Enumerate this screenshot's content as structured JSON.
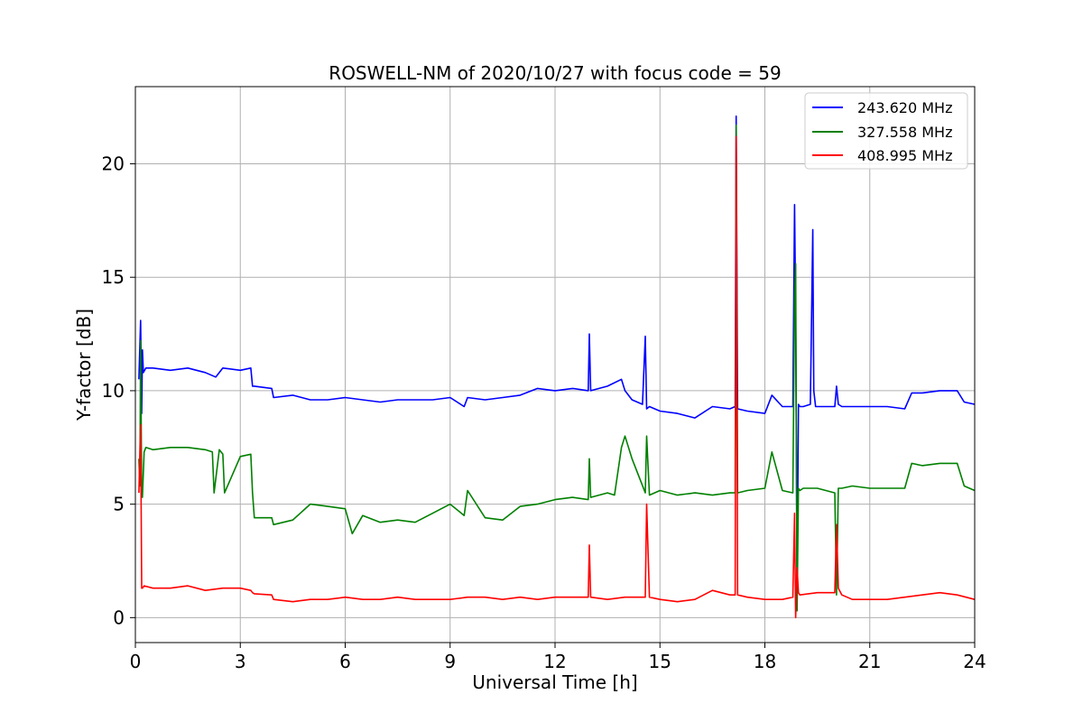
{
  "chart_data": {
    "type": "line",
    "title": "ROSWELL-NM of 2020/10/27 with focus code = 59",
    "xlabel": "Universal Time [h]",
    "ylabel": "Y-factor [dB]",
    "xlim": [
      0,
      24
    ],
    "ylim": [
      -1.1,
      23.4
    ],
    "xticks": [
      0,
      3,
      6,
      9,
      12,
      15,
      18,
      21,
      24
    ],
    "yticks": [
      0,
      5,
      10,
      15,
      20
    ],
    "grid": true,
    "legend_position": "top-right",
    "series": [
      {
        "name": "243.620 MHz",
        "color": "#0000ff",
        "x": [
          0.1,
          0.15,
          0.18,
          0.2,
          0.23,
          0.3,
          0.5,
          1.0,
          1.5,
          2.0,
          2.3,
          2.5,
          3.0,
          3.3,
          3.35,
          3.4,
          3.9,
          3.95,
          4.5,
          5.0,
          5.5,
          6.0,
          6.5,
          7.0,
          7.5,
          8.0,
          8.5,
          9.0,
          9.4,
          9.5,
          10.0,
          10.5,
          11.0,
          11.5,
          12.0,
          12.5,
          12.95,
          12.98,
          13.02,
          13.5,
          13.9,
          14.0,
          14.2,
          14.5,
          14.58,
          14.62,
          14.7,
          15.0,
          15.5,
          16.0,
          16.5,
          17.0,
          17.15,
          17.18,
          17.22,
          17.5,
          18.0,
          18.2,
          18.5,
          18.8,
          18.85,
          18.88,
          18.92,
          18.96,
          19.0,
          19.1,
          19.3,
          19.37,
          19.4,
          19.45,
          19.7,
          20.0,
          20.05,
          20.1,
          20.2,
          20.5,
          21.0,
          21.5,
          22.0,
          22.2,
          22.5,
          23.0,
          23.5,
          23.7,
          24.0
        ],
        "y": [
          10.5,
          13.1,
          9.0,
          11.8,
          10.8,
          11.0,
          11.0,
          10.9,
          11.0,
          10.8,
          10.6,
          11.0,
          10.9,
          11.0,
          10.2,
          10.2,
          10.1,
          9.7,
          9.8,
          9.6,
          9.6,
          9.7,
          9.6,
          9.5,
          9.6,
          9.6,
          9.6,
          9.7,
          9.3,
          9.7,
          9.6,
          9.7,
          9.8,
          10.1,
          10.0,
          10.1,
          10.0,
          12.5,
          10.0,
          10.2,
          10.5,
          10.0,
          9.6,
          9.4,
          12.4,
          9.2,
          9.3,
          9.1,
          9.0,
          8.8,
          9.3,
          9.2,
          9.3,
          22.1,
          9.2,
          9.1,
          9.0,
          9.8,
          9.3,
          9.3,
          18.2,
          13.5,
          1.0,
          9.4,
          9.3,
          9.3,
          9.4,
          17.1,
          10.0,
          9.3,
          9.3,
          9.3,
          10.2,
          9.4,
          9.3,
          9.3,
          9.3,
          9.3,
          9.2,
          9.9,
          9.9,
          10.0,
          10.0,
          9.5,
          9.4
        ]
      },
      {
        "name": "327.558 MHz",
        "color": "#008000",
        "x": [
          0.1,
          0.13,
          0.15,
          0.18,
          0.2,
          0.25,
          0.3,
          0.5,
          1.0,
          1.5,
          2.0,
          2.2,
          2.25,
          2.4,
          2.5,
          2.55,
          3.0,
          3.3,
          3.35,
          3.4,
          3.9,
          3.95,
          4.5,
          5.0,
          5.5,
          6.0,
          6.2,
          6.5,
          7.0,
          7.5,
          8.0,
          8.5,
          9.0,
          9.4,
          9.5,
          10.0,
          10.5,
          11.0,
          11.5,
          12.0,
          12.5,
          12.95,
          12.98,
          13.02,
          13.5,
          13.7,
          13.9,
          14.0,
          14.2,
          14.58,
          14.62,
          14.7,
          15.0,
          15.5,
          16.0,
          16.5,
          17.0,
          17.15,
          17.18,
          17.22,
          17.5,
          18.0,
          18.2,
          18.5,
          18.8,
          18.85,
          18.88,
          18.92,
          18.96,
          19.0,
          19.1,
          19.5,
          20.0,
          20.05,
          20.1,
          20.2,
          20.5,
          21.0,
          21.5,
          22.0,
          22.2,
          22.5,
          23.0,
          23.5,
          23.7,
          24.0
        ],
        "y": [
          7.0,
          5.8,
          12.2,
          5.5,
          5.3,
          7.3,
          7.5,
          7.4,
          7.5,
          7.5,
          7.4,
          7.3,
          5.5,
          7.4,
          7.2,
          5.5,
          7.1,
          7.2,
          5.5,
          4.4,
          4.4,
          4.1,
          4.3,
          5.0,
          4.9,
          4.8,
          3.7,
          4.5,
          4.2,
          4.3,
          4.2,
          4.6,
          5.0,
          4.5,
          5.6,
          4.4,
          4.3,
          4.9,
          5.0,
          5.2,
          5.3,
          5.2,
          7.0,
          5.3,
          5.5,
          5.4,
          7.5,
          8.0,
          7.0,
          5.5,
          8.0,
          5.4,
          5.6,
          5.4,
          5.5,
          5.4,
          5.5,
          5.5,
          21.7,
          5.5,
          5.6,
          5.7,
          7.3,
          5.6,
          5.5,
          14.0,
          15.6,
          0.3,
          5.7,
          5.6,
          5.7,
          5.7,
          5.5,
          1.0,
          5.7,
          5.7,
          5.8,
          5.7,
          5.7,
          5.7,
          6.8,
          6.7,
          6.8,
          6.8,
          5.8,
          5.6
        ]
      },
      {
        "name": "408.995 MHz",
        "color": "#ff0000",
        "x": [
          0.1,
          0.15,
          0.18,
          0.2,
          0.25,
          0.5,
          1.0,
          1.5,
          2.0,
          2.5,
          3.0,
          3.3,
          3.35,
          3.4,
          3.9,
          3.95,
          4.5,
          5.0,
          5.5,
          6.0,
          6.5,
          7.0,
          7.5,
          8.0,
          8.5,
          9.0,
          9.5,
          10.0,
          10.5,
          11.0,
          11.5,
          12.0,
          12.5,
          12.95,
          12.98,
          13.02,
          13.5,
          14.0,
          14.5,
          14.58,
          14.62,
          14.7,
          15.0,
          15.5,
          16.0,
          16.5,
          17.0,
          17.15,
          17.18,
          17.22,
          17.5,
          18.0,
          18.5,
          18.8,
          18.85,
          18.88,
          18.92,
          18.96,
          19.0,
          19.5,
          20.0,
          20.05,
          20.1,
          20.2,
          20.5,
          21.0,
          21.5,
          22.0,
          22.5,
          23.0,
          23.5,
          24.0
        ],
        "y": [
          5.5,
          8.5,
          1.3,
          1.3,
          1.4,
          1.3,
          1.3,
          1.4,
          1.2,
          1.3,
          1.3,
          1.2,
          1.1,
          1.05,
          1.0,
          0.8,
          0.7,
          0.8,
          0.8,
          0.9,
          0.8,
          0.8,
          0.9,
          0.8,
          0.8,
          0.8,
          0.9,
          0.9,
          0.8,
          0.9,
          0.8,
          0.9,
          0.9,
          0.9,
          3.2,
          0.9,
          0.8,
          0.9,
          0.9,
          0.9,
          5.0,
          0.9,
          0.8,
          0.7,
          0.8,
          1.2,
          1.0,
          1.0,
          21.2,
          1.0,
          0.9,
          0.8,
          0.8,
          0.9,
          4.6,
          0.0,
          2.2,
          1.1,
          1.0,
          1.1,
          1.1,
          4.1,
          1.3,
          1.0,
          0.8,
          0.8,
          0.8,
          0.9,
          1.0,
          1.1,
          1.0,
          0.8
        ]
      }
    ]
  }
}
